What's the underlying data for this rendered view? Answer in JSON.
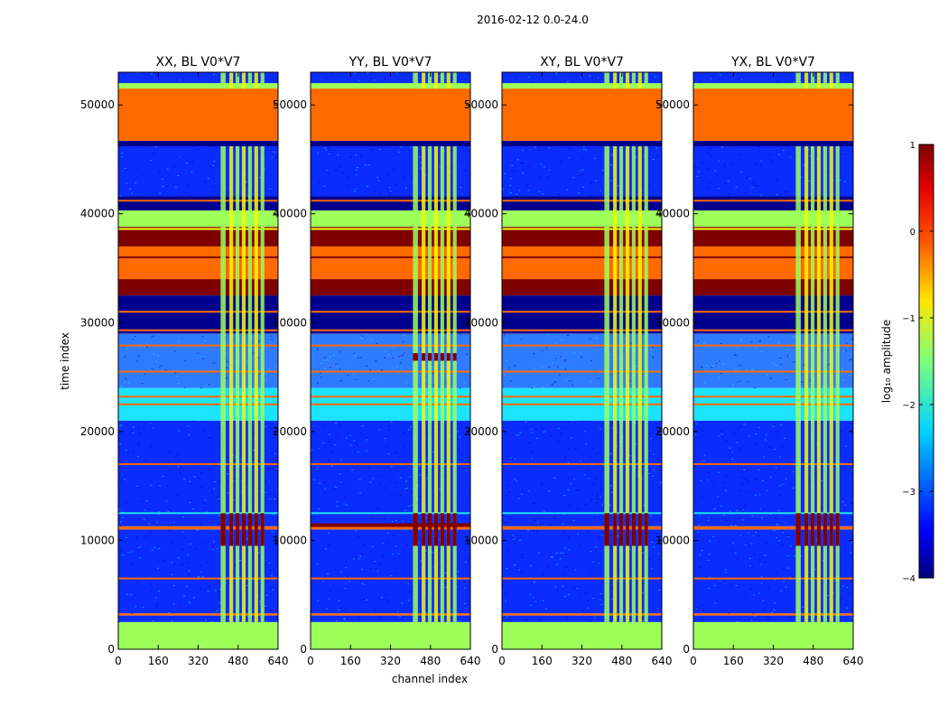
{
  "suptitle": "2016-02-12 0.0-24.0",
  "colors": {
    "dark_red": "#7f0000",
    "orange": "#ff6a00",
    "green": "#9dff5a",
    "cyan": "#1ce3ff",
    "blue": "#0a2cff",
    "navy": "#00008f",
    "yellow": "#f4ff00",
    "band_blue": "#2f7bff"
  },
  "chart_data": {
    "type": "heatmap",
    "xlabel": "channel index",
    "ylabel": "time index",
    "xlim": [
      0,
      640
    ],
    "ylim": [
      0,
      53000
    ],
    "xticks": [
      "0",
      "160",
      "320",
      "480",
      "640"
    ],
    "yticks": [
      "0",
      "10000",
      "20000",
      "30000",
      "40000",
      "50000"
    ],
    "panels": [
      {
        "title": "XX, BL V0*V7"
      },
      {
        "title": "YY, BL V0*V7"
      },
      {
        "title": "XY, BL V0*V7"
      },
      {
        "title": "YX, BL V0*V7"
      }
    ],
    "colorbar": {
      "label": "log₁₀ amplitude",
      "range": [
        -4,
        1
      ],
      "ticks": [
        "1",
        "0",
        "−1",
        "−2",
        "−3",
        "−4"
      ]
    },
    "rows": [
      {
        "t0": 0,
        "t1": 2500,
        "level": "green"
      },
      {
        "t0": 2500,
        "t1": 3100,
        "level": "blue"
      },
      {
        "t0": 3100,
        "t1": 3300,
        "level": "orange"
      },
      {
        "t0": 3300,
        "t1": 11000,
        "level": "blue"
      },
      {
        "t0": 11000,
        "t1": 11300,
        "level": "orange"
      },
      {
        "t0": 11300,
        "t1": 21000,
        "level": "blue"
      },
      {
        "t0": 21000,
        "t1": 24000,
        "level": "cyan"
      },
      {
        "t0": 24000,
        "t1": 29000,
        "level": "band_blue"
      },
      {
        "t0": 29000,
        "t1": 32500,
        "level": "navy"
      },
      {
        "t0": 32500,
        "t1": 34000,
        "level": "dark_red"
      },
      {
        "t0": 34000,
        "t1": 35000,
        "level": "orange"
      },
      {
        "t0": 35000,
        "t1": 37000,
        "level": "orange"
      },
      {
        "t0": 37000,
        "t1": 38800,
        "level": "dark_red"
      },
      {
        "t0": 38800,
        "t1": 40300,
        "level": "green"
      },
      {
        "t0": 40300,
        "t1": 41600,
        "level": "navy"
      },
      {
        "t0": 41600,
        "t1": 46200,
        "level": "blue"
      },
      {
        "t0": 46200,
        "t1": 46700,
        "level": "navy"
      },
      {
        "t0": 46700,
        "t1": 51500,
        "level": "orange"
      },
      {
        "t0": 51500,
        "t1": 52000,
        "level": "green"
      },
      {
        "t0": 52000,
        "t1": 53000,
        "level": "blue"
      }
    ],
    "stripes": [
      {
        "t": 6500,
        "level": "orange"
      },
      {
        "t": 12500,
        "level": "cyan"
      },
      {
        "t": 17000,
        "level": "orange"
      },
      {
        "t": 22500,
        "level": "orange"
      },
      {
        "t": 23200,
        "level": "orange"
      },
      {
        "t": 25500,
        "level": "orange"
      },
      {
        "t": 27900,
        "level": "orange"
      },
      {
        "t": 29300,
        "level": "orange"
      },
      {
        "t": 31000,
        "level": "orange"
      },
      {
        "t": 36000,
        "level": "dark_red"
      },
      {
        "t": 38600,
        "level": "yellow"
      },
      {
        "t": 41200,
        "level": "orange"
      }
    ],
    "rfi_columns": [
      {
        "c0": 410,
        "c1": 430
      },
      {
        "c0": 445,
        "c1": 460
      },
      {
        "c0": 470,
        "c1": 485
      },
      {
        "c0": 495,
        "c1": 510
      },
      {
        "c0": 520,
        "c1": 535
      },
      {
        "c0": 545,
        "c1": 560
      },
      {
        "c0": 570,
        "c1": 585
      }
    ],
    "rfi_burst": {
      "t0": 9500,
      "t1": 12500,
      "level": "dark_red"
    },
    "rfi_yy_extra": {
      "t0": 26500,
      "t1": 27200,
      "level": "dark_red"
    }
  }
}
